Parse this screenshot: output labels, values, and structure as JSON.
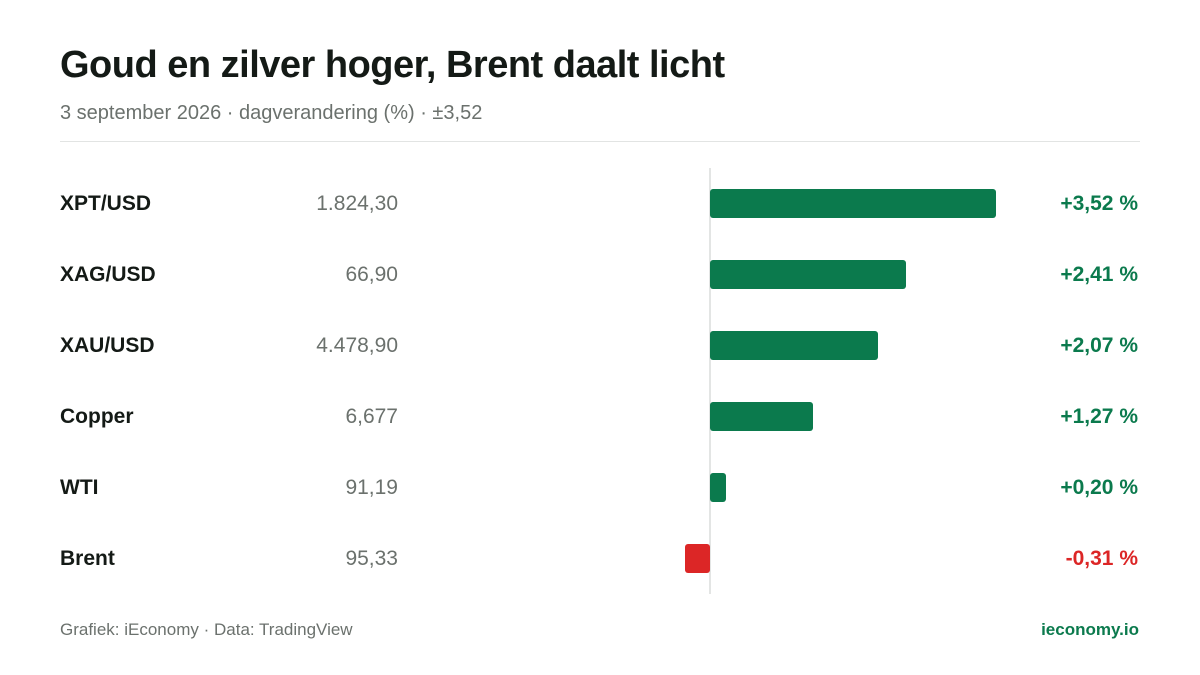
{
  "header": {
    "title": "Goud en zilver hoger, Brent daalt licht",
    "subtitle": "3 september 2026 · dagverandering (%) · ±3,52"
  },
  "colors": {
    "positive": "#0b7a4d",
    "negative": "#dc2626"
  },
  "chart_data": {
    "type": "bar",
    "orientation": "horizontal",
    "categories": [
      "XPT/USD",
      "XAG/USD",
      "XAU/USD",
      "Copper",
      "WTI",
      "Brent"
    ],
    "prices": [
      "1.824,30",
      "66,90",
      "4.478,90",
      "6,677",
      "91,19",
      "95,33"
    ],
    "values": [
      3.52,
      2.41,
      2.07,
      1.27,
      0.2,
      -0.31
    ],
    "value_labels": [
      "+3,52 %",
      "+2,41 %",
      "+2,07 %",
      "+1,27 %",
      "+0,20 %",
      "-0,31 %"
    ],
    "xlim": [
      -3.52,
      3.52
    ],
    "grid": false
  },
  "footer": {
    "source": "Grafiek: iEconomy · Data: TradingView",
    "brand": "ieconomy.io"
  }
}
